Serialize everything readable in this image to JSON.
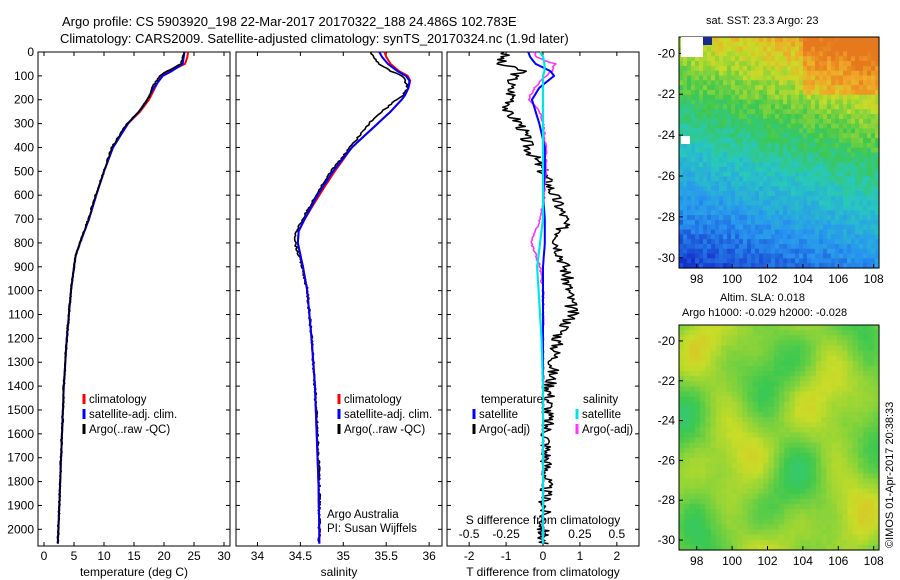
{
  "title": {
    "line1": "Argo profile: CS 5903920_198 22-Mar-2017 20170322_188 24.486S 102.783E",
    "line2": "Climatology: CARS2009. Satellite-adjusted climatology: synTS_20170324.nc (1.9d later)"
  },
  "colors": {
    "climatology": "#ff0000",
    "satellite": "#0000ff",
    "argo": "#000000",
    "sal_satellite": "#00e5e5",
    "sal_argo": "#ff33ff"
  },
  "chart_data": [
    {
      "type": "line",
      "id": "temperature",
      "xlabel": "temperature (deg C)",
      "ylabel": "",
      "xlim": [
        -1,
        31
      ],
      "ylim": [
        2070,
        0
      ],
      "xticks": [
        "0",
        "5",
        "10",
        "15",
        "20",
        "25",
        "30"
      ],
      "yticks": [
        "0",
        "100",
        "200",
        "300",
        "400",
        "500",
        "600",
        "700",
        "800",
        "900",
        "1000",
        "1100",
        "1200",
        "1300",
        "1400",
        "1500",
        "1600",
        "1700",
        "1800",
        "1900",
        "2000"
      ],
      "depth": [
        0,
        20,
        50,
        80,
        100,
        150,
        200,
        250,
        300,
        400,
        500,
        600,
        700,
        800,
        850,
        900,
        1000,
        1200,
        1400,
        1600,
        1800,
        2000,
        2060
      ],
      "series": [
        {
          "name": "climatology",
          "values": [
            24.0,
            23.9,
            23.5,
            21.0,
            19.5,
            18.5,
            17.5,
            16.0,
            14.0,
            11.5,
            10.0,
            8.7,
            7.5,
            6.0,
            5.3,
            5.0,
            4.5,
            3.8,
            3.3,
            3.0,
            2.7,
            2.4,
            2.3
          ]
        },
        {
          "name": "satellite-adj. clim.",
          "values": [
            23.4,
            23.3,
            23.1,
            21.3,
            19.8,
            18.3,
            17.2,
            15.8,
            14.0,
            11.5,
            10.0,
            8.7,
            7.5,
            6.0,
            5.3,
            5.0,
            4.5,
            3.8,
            3.3,
            3.0,
            2.7,
            2.4,
            2.3
          ]
        },
        {
          "name": "Argo(..raw -QC)",
          "values": [
            23.3,
            23.2,
            22.8,
            20.5,
            19.3,
            18.0,
            17.3,
            15.8,
            13.8,
            11.3,
            10.0,
            8.6,
            7.4,
            6.0,
            5.3,
            5.0,
            4.5,
            3.8,
            3.3,
            3.0,
            2.7,
            2.4,
            2.3
          ]
        }
      ],
      "legend": [
        "climatology",
        "satellite-adj. clim.",
        "Argo(..raw -QC)"
      ]
    },
    {
      "type": "line",
      "id": "salinity",
      "xlabel": "salinity",
      "xlim": [
        33.75,
        36.15
      ],
      "ylim": [
        2070,
        0
      ],
      "xticks": [
        "34",
        "34.5",
        "35",
        "35.5",
        "36"
      ],
      "depth": [
        0,
        20,
        50,
        80,
        100,
        120,
        150,
        180,
        200,
        250,
        300,
        400,
        500,
        600,
        700,
        750,
        800,
        850,
        900,
        1000,
        1200,
        1400,
        1600,
        1800,
        2000,
        2060
      ],
      "series": [
        {
          "name": "climatology",
          "values": [
            35.48,
            35.5,
            35.55,
            35.65,
            35.75,
            35.78,
            35.76,
            35.72,
            35.68,
            35.55,
            35.4,
            35.1,
            34.9,
            34.72,
            34.55,
            34.48,
            34.47,
            34.5,
            34.53,
            34.58,
            34.63,
            34.67,
            34.69,
            34.71,
            34.72,
            34.72
          ]
        },
        {
          "name": "satellite-adj. clim.",
          "values": [
            35.42,
            35.45,
            35.52,
            35.63,
            35.73,
            35.77,
            35.76,
            35.72,
            35.68,
            35.55,
            35.4,
            35.1,
            34.88,
            34.7,
            34.55,
            34.48,
            34.47,
            34.5,
            34.53,
            34.58,
            34.63,
            34.67,
            34.69,
            34.71,
            34.72,
            34.72
          ]
        },
        {
          "name": "Argo(..raw -QC)",
          "values": [
            35.32,
            35.35,
            35.42,
            35.55,
            35.68,
            35.72,
            35.75,
            35.7,
            35.62,
            35.45,
            35.3,
            35.08,
            34.86,
            34.68,
            34.53,
            34.45,
            34.44,
            34.48,
            34.52,
            34.58,
            34.63,
            34.67,
            34.7,
            34.72,
            34.72,
            34.72
          ]
        }
      ],
      "legend": [
        "climatology",
        "satellite-adj. clim.",
        "Argo(..raw -QC)"
      ],
      "annotation": [
        "Argo Australia",
        "PI: Susan Wijffels"
      ]
    },
    {
      "type": "line",
      "id": "difference",
      "xlabel": "T difference from climatology",
      "xlabel_top": "S difference from climatology",
      "xlim": [
        -2.6,
        2.6
      ],
      "ylim": [
        2070,
        0
      ],
      "xticks": [
        "-2",
        "-1",
        "0",
        "1",
        "2"
      ],
      "xticks_top": [
        "-0.5",
        "-0.25",
        "0",
        "0.25",
        "0.5"
      ],
      "depth": [
        0,
        20,
        50,
        80,
        100,
        150,
        200,
        250,
        300,
        400,
        500,
        600,
        700,
        800,
        900,
        1000,
        1100,
        1200,
        1400,
        1600,
        1800,
        2000,
        2060
      ],
      "series": [
        {
          "name": "temperature satellite",
          "values": [
            -0.4,
            -0.35,
            -0.2,
            0.2,
            0.3,
            -0.1,
            -0.3,
            -0.2,
            -0.1,
            0.05,
            0.05,
            0.0,
            0.05,
            0.05,
            0.0,
            0.0,
            0.0,
            0.0,
            0.0,
            0.0,
            0.0,
            0.0,
            0.0
          ]
        },
        {
          "name": "temperature Argo(-adj)",
          "values": [
            -1.0,
            -1.1,
            -1.2,
            -0.5,
            -0.8,
            -0.9,
            -0.8,
            -1.0,
            -0.6,
            -0.4,
            0.0,
            0.3,
            0.6,
            0.4,
            0.6,
            0.7,
            0.8,
            0.4,
            0.2,
            0.1,
            0.1,
            0.0,
            0.0
          ]
        },
        {
          "name": "salinity satellite",
          "values": [
            -0.02,
            0.0,
            0.01,
            0.01,
            0.0,
            0.0,
            0.0,
            0.0,
            0.0,
            0.0,
            0.0,
            0.0,
            0.0,
            -0.02,
            -0.04,
            -0.03,
            -0.02,
            -0.01,
            0.0,
            0.0,
            0.0,
            0.0,
            0.0
          ]
        },
        {
          "name": "salinity Argo(-adj)",
          "values": [
            -0.06,
            -0.05,
            0.08,
            0.06,
            0.02,
            -0.06,
            -0.1,
            -0.02,
            0.0,
            0.02,
            0.02,
            0.01,
            -0.02,
            -0.08,
            -0.02,
            0.0,
            0.0,
            0.0,
            0.0,
            0.0,
            0.0,
            0.0,
            0.0
          ]
        }
      ],
      "legend_temperature_title": "temperature",
      "legend_salinity_title": "salinity",
      "legend": [
        "satellite",
        "Argo(-adj)",
        "satellite",
        "Argo(-adj)"
      ]
    },
    {
      "type": "heatmap",
      "id": "sst_map",
      "title": "sat. SST: 23.3 Argo: 23",
      "xticks": [
        "98",
        "100",
        "102",
        "104",
        "106",
        "108"
      ],
      "yticks": [
        "-20",
        "-22",
        "-24",
        "-26",
        "-28",
        "-30"
      ],
      "xlim": [
        97,
        108.3
      ],
      "ylim": [
        -30.5,
        -19.2
      ]
    },
    {
      "type": "heatmap",
      "id": "sla_map",
      "title_line1": "Altim. SLA: 0.018",
      "title_line2": "Argo h1000: -0.029 h2000: -0.028",
      "xticks": [
        "98",
        "100",
        "102",
        "104",
        "106",
        "108"
      ],
      "yticks": [
        "-20",
        "-22",
        "-24",
        "-26",
        "-28",
        "-30"
      ],
      "xlim": [
        97,
        108.3
      ],
      "ylim": [
        -30.5,
        -19.2
      ]
    }
  ],
  "credit": "©IMOS 01-Apr-2017 20:38:33"
}
